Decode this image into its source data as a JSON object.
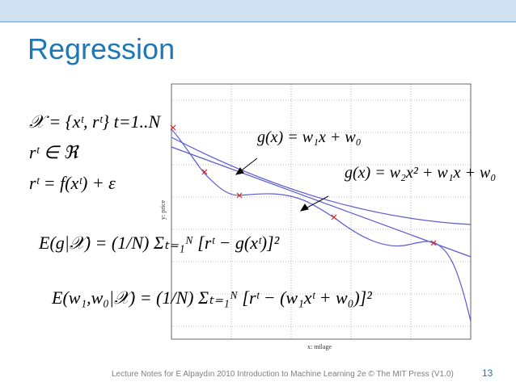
{
  "slide": {
    "title": "Regression",
    "footer": "Lecture Notes for E Alpaydın 2010 Introduction to Machine Learning 2e © The MIT Press (V1.0)",
    "page_number": "13"
  },
  "equations": {
    "dataset": "𝒳 = {xᵗ, rᵗ} t=1..N",
    "r_in_reals": "rᵗ ∈ ℜ",
    "r_def": "rᵗ = f(xᵗ) + ε",
    "error_g": "E(g|𝒳) = (1/N) Σₜ₌₁ᴺ [rᵗ − g(xᵗ)]²",
    "error_w": "E(w₁,w₀|𝒳) = (1/N) Σₜ₌₁ᴺ [rᵗ − (w₁xᵗ + w₀)]²",
    "g_linear": "g(x) = w₁x + w₀",
    "g_quadratic": "g(x) = w₂x² + w₁x + w₀"
  },
  "plot": {
    "xlabel": "x: milage",
    "ylabel": "y: price",
    "grid": true,
    "colors": {
      "curve": "#5a5ad6",
      "marker": "#d62728",
      "grid": "#888888"
    }
  },
  "theme": {
    "accent": "#1f77b4",
    "header": "#cfe0f0"
  }
}
